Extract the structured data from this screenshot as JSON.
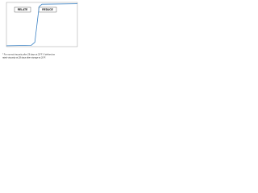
{
  "chart_data": {
    "type": "line",
    "x": [
      0,
      3.5,
      4,
      4.3,
      4.6,
      5,
      10
    ],
    "series": [
      {
        "color": "#3b82c4",
        "values": [
          2,
          3,
          10,
          50,
          90,
          96,
          97
        ]
      }
    ],
    "xlim": [
      0,
      10
    ],
    "ylim": [
      0,
      100
    ],
    "annotations": [
      "RELATE",
      "REDUCE"
    ],
    "caption": [
      "* For normal viscosity after 28 days at 20°F. If defined as",
      "rated viscosity at 28 days after storage at 20°F."
    ]
  }
}
